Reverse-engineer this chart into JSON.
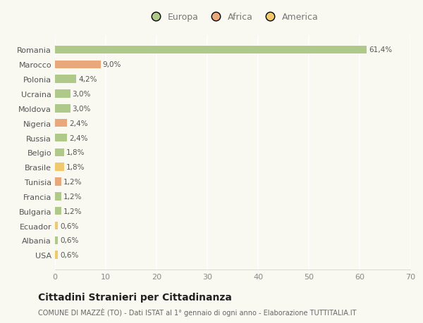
{
  "categories": [
    "Romania",
    "Marocco",
    "Polonia",
    "Ucraina",
    "Moldova",
    "Nigeria",
    "Russia",
    "Belgio",
    "Brasile",
    "Tunisia",
    "Francia",
    "Bulgaria",
    "Ecuador",
    "Albania",
    "USA"
  ],
  "values": [
    61.4,
    9.0,
    4.2,
    3.0,
    3.0,
    2.4,
    2.4,
    1.8,
    1.8,
    1.2,
    1.2,
    1.2,
    0.6,
    0.6,
    0.6
  ],
  "labels": [
    "61,4%",
    "9,0%",
    "4,2%",
    "3,0%",
    "3,0%",
    "2,4%",
    "2,4%",
    "1,8%",
    "1,8%",
    "1,2%",
    "1,2%",
    "1,2%",
    "0,6%",
    "0,6%",
    "0,6%"
  ],
  "continents": [
    "Europa",
    "Africa",
    "Europa",
    "Europa",
    "Europa",
    "Africa",
    "Europa",
    "Europa",
    "America",
    "Africa",
    "Europa",
    "Europa",
    "America",
    "Europa",
    "America"
  ],
  "colors": {
    "Europa": "#aec98a",
    "Africa": "#e8a87c",
    "America": "#f0c96e"
  },
  "xlim": [
    0,
    70
  ],
  "xticks": [
    0,
    10,
    20,
    30,
    40,
    50,
    60,
    70
  ],
  "title": "Cittadini Stranieri per Cittadinanza",
  "subtitle": "COMUNE DI MAZZÈ (TO) - Dati ISTAT al 1° gennaio di ogni anno - Elaborazione TUTTITALIA.IT",
  "background_color": "#f9f9f2",
  "grid_color": "#ffffff",
  "bar_height": 0.55
}
